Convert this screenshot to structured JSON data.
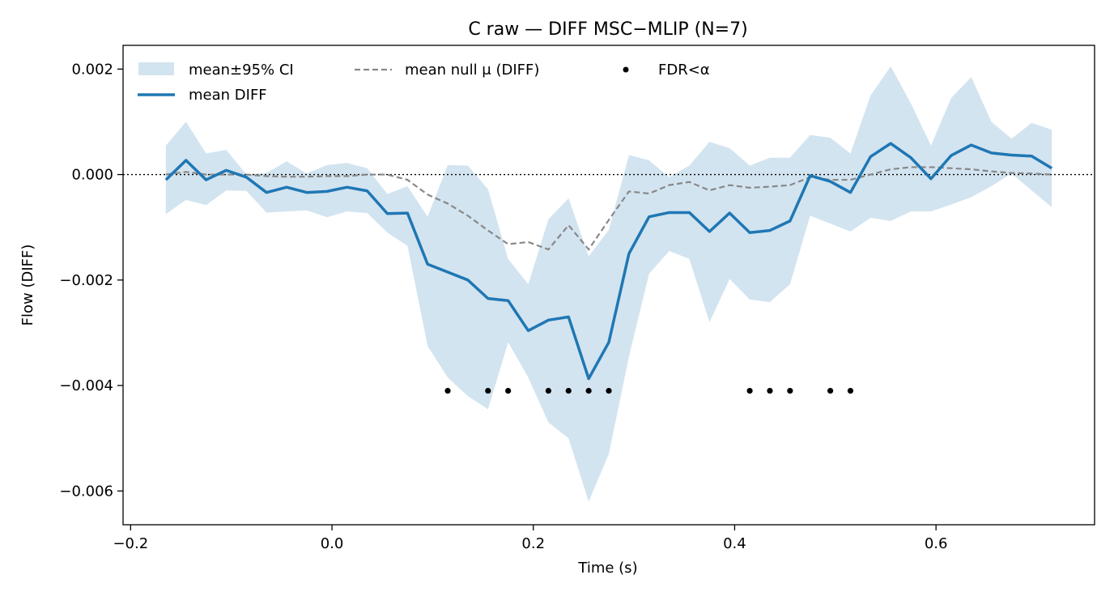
{
  "chart_data": {
    "type": "line",
    "title": "C raw — DIFF MSC−MLIP (N=7)",
    "xlabel": "Time (s)",
    "ylabel": "Flow (DIFF)",
    "xlim": [
      -0.2075,
      0.7575
    ],
    "ylim": [
      -0.00664,
      0.00245
    ],
    "xticks": [
      -0.2,
      0.0,
      0.2,
      0.4,
      0.6
    ],
    "xtick_labels": [
      "−0.2",
      "0.0",
      "0.2",
      "0.4",
      "0.6"
    ],
    "yticks": [
      0.002,
      0.0,
      -0.002,
      -0.004,
      -0.006
    ],
    "ytick_labels": [
      "0.002",
      "0.000",
      "−0.002",
      "−0.004",
      "−0.006"
    ],
    "grid": false,
    "legend_placement": "top-left",
    "x": [
      -0.165,
      -0.145,
      -0.125,
      -0.105,
      -0.085,
      -0.065,
      -0.045,
      -0.025,
      -0.005,
      0.015,
      0.035,
      0.055,
      0.075,
      0.095,
      0.115,
      0.135,
      0.155,
      0.175,
      0.195,
      0.215,
      0.235,
      0.255,
      0.275,
      0.295,
      0.315,
      0.335,
      0.355,
      0.375,
      0.395,
      0.415,
      0.435,
      0.455,
      0.475,
      0.495,
      0.515,
      0.535,
      0.555,
      0.575,
      0.595,
      0.615,
      0.635,
      0.655,
      0.675,
      0.695,
      0.715
    ],
    "series": [
      {
        "name": "mean DIFF",
        "values": [
          -0.0001,
          0.00027,
          -0.0001,
          8e-05,
          -5e-05,
          -0.00034,
          -0.00024,
          -0.00034,
          -0.00032,
          -0.00024,
          -0.00031,
          -0.00074,
          -0.00073,
          -0.0017,
          -0.00185,
          -0.002,
          -0.00235,
          -0.00239,
          -0.00296,
          -0.00276,
          -0.0027,
          -0.00387,
          -0.00318,
          -0.0015,
          -0.0008,
          -0.00072,
          -0.00072,
          -0.00108,
          -0.00073,
          -0.0011,
          -0.00106,
          -0.00088,
          -2e-05,
          -0.00013,
          -0.00034,
          0.00034,
          0.00059,
          0.00032,
          -8e-05,
          0.00036,
          0.00056,
          0.00041,
          0.00037,
          0.00035,
          0.00012
        ],
        "color": "#1f77b4"
      },
      {
        "name": "mean null μ (DIFF)",
        "values": [
          0.0,
          5e-05,
          0.0,
          0.0,
          0.0,
          -3e-05,
          -4e-05,
          -4e-05,
          -3e-05,
          -3e-05,
          0.0,
          0.0,
          -0.0001,
          -0.00038,
          -0.00055,
          -0.00078,
          -0.00106,
          -0.00132,
          -0.00128,
          -0.00142,
          -0.00096,
          -0.00142,
          -0.00086,
          -0.00032,
          -0.00036,
          -0.0002,
          -0.00014,
          -0.0003,
          -0.0002,
          -0.00025,
          -0.00023,
          -0.0002,
          -5e-05,
          -0.0001,
          -0.0001,
          0.0,
          0.0001,
          0.00014,
          0.00014,
          0.00012,
          0.0001,
          6e-05,
          3e-05,
          2e-05,
          0.0
        ],
        "color": "#888888"
      },
      {
        "name": "mean±95% CI",
        "upper": [
          0.00055,
          0.001,
          0.0004,
          0.00047,
          0.0,
          3e-05,
          0.00025,
          2e-05,
          0.00018,
          0.00022,
          0.00012,
          -0.00037,
          -0.00022,
          -0.0008,
          0.00018,
          0.00017,
          -0.00028,
          -0.0016,
          -0.00208,
          -0.00085,
          -0.00045,
          -0.00155,
          -0.00105,
          0.00037,
          0.00027,
          -5e-05,
          0.00017,
          0.00062,
          0.0005,
          0.00017,
          0.00032,
          0.00032,
          0.00075,
          0.0007,
          0.0004,
          0.0015,
          0.00205,
          0.00135,
          0.00055,
          0.00145,
          0.00185,
          0.001,
          0.00068,
          0.00098,
          0.00085
        ],
        "lower": [
          -0.00075,
          -0.00048,
          -0.00058,
          -0.0003,
          -0.00031,
          -0.00072,
          -0.0007,
          -0.00068,
          -0.00081,
          -0.0007,
          -0.00073,
          -0.0011,
          -0.00135,
          -0.00325,
          -0.00385,
          -0.0042,
          -0.00445,
          -0.00318,
          -0.00385,
          -0.0047,
          -0.005,
          -0.0062,
          -0.0053,
          -0.00345,
          -0.00188,
          -0.00145,
          -0.0016,
          -0.0028,
          -0.00198,
          -0.00237,
          -0.00242,
          -0.00208,
          -0.00078,
          -0.00093,
          -0.00108,
          -0.00082,
          -0.00088,
          -0.0007,
          -0.0007,
          -0.00057,
          -0.00043,
          -0.00022,
          2e-05,
          -0.0003,
          -0.00062
        ],
        "color": "#1f77b4"
      },
      {
        "name": "FDR<α",
        "x": [
          0.115,
          0.155,
          0.175,
          0.215,
          0.235,
          0.255,
          0.275,
          0.415,
          0.435,
          0.455,
          0.495,
          0.515
        ],
        "y": [
          -0.0041,
          -0.0041,
          -0.0041,
          -0.0041,
          -0.0041,
          -0.0041,
          -0.0041,
          -0.0041,
          -0.0041,
          -0.0041,
          -0.0041,
          -0.0041
        ],
        "color": "#000000"
      }
    ],
    "reference_line": {
      "y": 0.0,
      "style": "dotted",
      "color": "#000000"
    },
    "legend": {
      "ci_label": "mean±95% CI",
      "mean_label": "mean DIFF",
      "null_label": "mean null μ (DIFF)",
      "fdr_label": "FDR<α"
    }
  }
}
